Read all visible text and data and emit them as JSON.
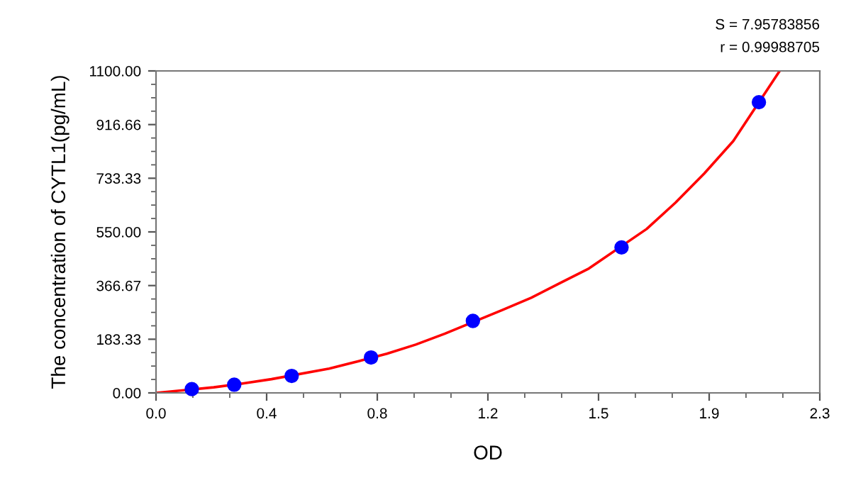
{
  "chart_data": {
    "type": "scatter",
    "xlabel": "OD",
    "ylabel": "The concentration of CYTL1(pg/mL)",
    "annotations": [
      "S = 7.95783856",
      "r = 0.99988705"
    ],
    "series": [
      {
        "color": "#0000ff",
        "marker": "circle",
        "x": [
          0.124,
          0.271,
          0.47,
          0.745,
          1.098,
          1.613,
          2.089
        ],
        "values": [
          13,
          28,
          58,
          121,
          246,
          497,
          993
        ]
      },
      {
        "type": "line",
        "color": "#ff0000",
        "marker": "none",
        "line_style": "solid",
        "x": [
          0,
          0.2,
          0.3,
          0.4,
          0.6,
          0.7,
          0.8,
          0.9,
          1.0,
          1.2,
          1.3,
          1.4,
          1.5,
          1.7,
          1.8,
          1.9,
          2.0,
          2.161
        ],
        "values": [
          0,
          19,
          32,
          47,
          83,
          108,
          134,
          165,
          202,
          283,
          325,
          375,
          425,
          560,
          650,
          750,
          860,
          1100
        ]
      }
    ],
    "xlim": [
      0,
      2.3
    ],
    "ylim": [
      0,
      1100
    ],
    "xticks": [
      {
        "value": 0,
        "label": "0.0"
      },
      {
        "value": 0.3833,
        "label": "0.4"
      },
      {
        "value": 0.7667,
        "label": "0.8"
      },
      {
        "value": 1.15,
        "label": "1.2"
      },
      {
        "value": 1.5333,
        "label": "1.5"
      },
      {
        "value": 1.9167,
        "label": "1.9"
      },
      {
        "value": 2.3,
        "label": "2.3"
      }
    ],
    "yticks": [
      {
        "value": 0,
        "label": "0.00"
      },
      {
        "value": 183.33,
        "label": "183.33"
      },
      {
        "value": 366.67,
        "label": "366.67"
      },
      {
        "value": 550,
        "label": "550.00"
      },
      {
        "value": 733.33,
        "label": "733.33"
      },
      {
        "value": 916.66,
        "label": "916.66"
      },
      {
        "value": 1100,
        "label": "1100.00"
      }
    ],
    "grid": false,
    "legend": false
  }
}
